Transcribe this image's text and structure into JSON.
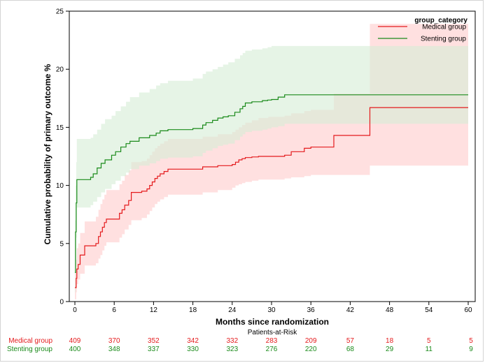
{
  "chart_data": {
    "type": "line",
    "subtype": "kaplan-meier cumulative incidence step curves with confidence bands",
    "xlabel": "Months since randomization",
    "ylabel": "Cumulative probability of primary outcome %",
    "xlim": [
      0,
      60
    ],
    "ylim": [
      0,
      25
    ],
    "xticks": [
      "0",
      "6",
      "12",
      "18",
      "24",
      "30",
      "36",
      "42",
      "48",
      "54",
      "60"
    ],
    "yticks": [
      "0",
      "5",
      "10",
      "15",
      "20",
      "25"
    ],
    "grid": false,
    "legend": {
      "title": "group_category",
      "placement": "top-right",
      "entries": [
        "Medical group",
        "Stenting group"
      ]
    },
    "series": [
      {
        "name": "Medical group",
        "color": "#e41a1c",
        "band_color": "#ffcccc",
        "x": [
          0,
          0.2,
          0.3,
          0.5,
          0.8,
          1.5,
          3.2,
          3.6,
          3.9,
          4.2,
          4.5,
          4.8,
          6.2,
          6.8,
          7.2,
          7.6,
          8.2,
          8.6,
          10.2,
          11.0,
          11.4,
          11.8,
          12.2,
          12.6,
          13.0,
          13.6,
          14.2,
          19.5,
          21.8,
          24.0,
          24.5,
          25.0,
          25.5,
          26.0,
          27.0,
          28.0,
          29.5,
          32.0,
          33.0,
          35.0,
          36.0,
          39.5,
          45.0,
          60.0
        ],
        "y": [
          1.2,
          2.0,
          2.8,
          3.2,
          4.0,
          4.8,
          5.0,
          5.6,
          6.0,
          6.4,
          6.8,
          7.1,
          7.1,
          7.6,
          7.9,
          8.3,
          8.7,
          9.4,
          9.5,
          9.7,
          10.0,
          10.3,
          10.6,
          10.8,
          11.0,
          11.2,
          11.4,
          11.6,
          11.7,
          11.8,
          12.0,
          12.2,
          12.3,
          12.4,
          12.45,
          12.5,
          12.5,
          12.6,
          12.9,
          13.2,
          13.3,
          14.3,
          16.7,
          16.7
        ],
        "ci_lower": [
          0.2,
          0.8,
          1.5,
          1.9,
          2.4,
          3.1,
          3.3,
          3.7,
          4.0,
          4.4,
          4.8,
          5.1,
          5.1,
          5.5,
          5.8,
          6.2,
          6.6,
          7.0,
          7.2,
          7.5,
          7.8,
          8.1,
          8.4,
          8.6,
          8.8,
          9.0,
          9.2,
          9.4,
          9.6,
          9.8,
          10.0,
          10.1,
          10.2,
          10.3,
          10.4,
          10.5,
          10.5,
          10.6,
          10.7,
          10.8,
          10.9,
          10.9,
          11.7,
          11.7
        ],
        "ci_upper": [
          2.7,
          3.6,
          4.6,
          5.0,
          5.9,
          6.9,
          7.3,
          7.9,
          8.4,
          8.8,
          9.2,
          9.6,
          9.6,
          10.1,
          10.4,
          10.9,
          11.3,
          12.0,
          12.1,
          12.3,
          12.6,
          12.9,
          13.2,
          13.4,
          13.6,
          13.8,
          14.0,
          14.2,
          14.4,
          14.6,
          14.8,
          15.0,
          15.2,
          15.4,
          15.6,
          15.8,
          15.9,
          16.0,
          16.2,
          16.4,
          16.5,
          17.9,
          23.9,
          23.9
        ]
      },
      {
        "name": "Stenting group",
        "color": "#1a8a1a",
        "band_color": "#d5ecd5",
        "x": [
          0,
          0.1,
          0.2,
          0.3,
          2.4,
          2.8,
          3.4,
          4.0,
          4.6,
          5.6,
          6.2,
          7.0,
          7.8,
          8.4,
          9.8,
          11.4,
          12.4,
          13.0,
          14.2,
          18.0,
          19.5,
          20.0,
          21.0,
          21.8,
          22.6,
          23.4,
          24.4,
          25.2,
          25.6,
          26.0,
          27.0,
          28.6,
          29.4,
          30.0,
          31.0,
          32.0,
          60.0
        ],
        "y": [
          2.5,
          6.0,
          8.5,
          10.5,
          10.7,
          11.0,
          11.5,
          11.9,
          12.2,
          12.6,
          12.9,
          13.3,
          13.6,
          13.8,
          14.1,
          14.3,
          14.5,
          14.7,
          14.8,
          14.9,
          15.2,
          15.4,
          15.6,
          15.8,
          15.9,
          16.0,
          16.3,
          16.6,
          16.8,
          17.1,
          17.2,
          17.3,
          17.35,
          17.4,
          17.6,
          17.8,
          17.8
        ],
        "ci_lower": [
          0.8,
          3.0,
          5.5,
          8.1,
          8.3,
          8.6,
          9.0,
          9.4,
          9.7,
          10.1,
          10.4,
          10.8,
          11.1,
          11.4,
          11.7,
          11.9,
          12.1,
          12.3,
          12.4,
          12.5,
          12.8,
          13.0,
          13.2,
          13.4,
          13.5,
          13.6,
          13.9,
          14.2,
          14.4,
          14.6,
          14.7,
          14.8,
          14.9,
          15.0,
          15.1,
          15.3,
          15.3
        ],
        "ci_upper": [
          7.0,
          10.0,
          12.0,
          14.0,
          14.1,
          14.4,
          14.8,
          15.3,
          15.7,
          16.0,
          16.4,
          16.8,
          17.2,
          17.6,
          18.0,
          18.3,
          18.6,
          18.8,
          19.0,
          19.2,
          19.6,
          19.8,
          20.0,
          20.2,
          20.4,
          20.6,
          20.9,
          21.2,
          21.4,
          21.6,
          21.7,
          21.8,
          21.9,
          22.0,
          22.0,
          22.0,
          22.0
        ]
      }
    ]
  },
  "risk_table": {
    "title": "Patients-at-Risk",
    "rows": [
      {
        "label": "Medical group",
        "color": "#e41a1c",
        "values": [
          "409",
          "370",
          "352",
          "342",
          "332",
          "283",
          "209",
          "57",
          "18",
          "5",
          "5"
        ]
      },
      {
        "label": "Stenting group",
        "color": "#1a8a1a",
        "values": [
          "400",
          "348",
          "337",
          "330",
          "323",
          "276",
          "220",
          "68",
          "29",
          "11",
          "9"
        ]
      }
    ]
  }
}
